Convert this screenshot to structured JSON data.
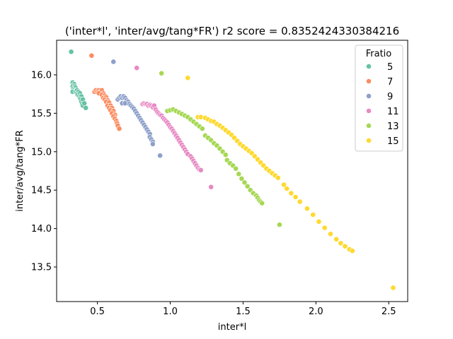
{
  "chart_data": {
    "type": "scatter",
    "title": "('inter*l', 'inter/avg/tang*FR') r2 score = 0.8352424330384216",
    "xlabel": "inter*l",
    "ylabel": "inter/avg/tang*FR",
    "xlim": [
      0.22,
      2.63
    ],
    "ylim": [
      13.05,
      16.45
    ],
    "xticks": [
      0.5,
      1.0,
      1.5,
      2.0,
      2.5
    ],
    "xtick_labels": [
      "0.5",
      "1.0",
      "1.5",
      "2.0",
      "2.5"
    ],
    "yticks": [
      13.5,
      14.0,
      14.5,
      15.0,
      15.5,
      16.0
    ],
    "ytick_labels": [
      "13.5",
      "14.0",
      "14.5",
      "15.0",
      "15.5",
      "16.0"
    ],
    "grid": false,
    "legend": {
      "title": "Fratio",
      "placement": "top-right"
    },
    "series": [
      {
        "name": "5",
        "color": "#66c2a5",
        "points": [
          [
            0.32,
            16.3
          ],
          [
            0.33,
            15.9
          ],
          [
            0.34,
            15.88
          ],
          [
            0.33,
            15.85
          ],
          [
            0.345,
            15.85
          ],
          [
            0.335,
            15.82
          ],
          [
            0.35,
            15.83
          ],
          [
            0.34,
            15.8
          ],
          [
            0.355,
            15.8
          ],
          [
            0.33,
            15.78
          ],
          [
            0.35,
            15.78
          ],
          [
            0.36,
            15.8
          ],
          [
            0.36,
            15.76
          ],
          [
            0.37,
            15.78
          ],
          [
            0.365,
            15.74
          ],
          [
            0.38,
            15.76
          ],
          [
            0.375,
            15.72
          ],
          [
            0.38,
            15.7
          ],
          [
            0.39,
            15.72
          ],
          [
            0.385,
            15.68
          ],
          [
            0.39,
            15.65
          ],
          [
            0.4,
            15.68
          ],
          [
            0.395,
            15.62
          ],
          [
            0.4,
            15.6
          ],
          [
            0.41,
            15.63
          ],
          [
            0.42,
            15.57
          ]
        ]
      },
      {
        "name": "7",
        "color": "#fc8d62",
        "points": [
          [
            0.46,
            16.25
          ],
          [
            0.48,
            15.78
          ],
          [
            0.49,
            15.8
          ],
          [
            0.5,
            15.78
          ],
          [
            0.51,
            15.8
          ],
          [
            0.52,
            15.78
          ],
          [
            0.53,
            15.8
          ],
          [
            0.51,
            15.76
          ],
          [
            0.54,
            15.76
          ],
          [
            0.53,
            15.74
          ],
          [
            0.55,
            15.73
          ],
          [
            0.54,
            15.7
          ],
          [
            0.56,
            15.71
          ],
          [
            0.55,
            15.68
          ],
          [
            0.57,
            15.67
          ],
          [
            0.56,
            15.65
          ],
          [
            0.58,
            15.64
          ],
          [
            0.57,
            15.6
          ],
          [
            0.59,
            15.6
          ],
          [
            0.58,
            15.57
          ],
          [
            0.6,
            15.57
          ],
          [
            0.59,
            15.54
          ],
          [
            0.61,
            15.53
          ],
          [
            0.6,
            15.5
          ],
          [
            0.62,
            15.48
          ],
          [
            0.61,
            15.46
          ],
          [
            0.62,
            15.43
          ],
          [
            0.63,
            15.4
          ],
          [
            0.635,
            15.37
          ],
          [
            0.64,
            15.34
          ],
          [
            0.65,
            15.3
          ]
        ]
      },
      {
        "name": "9",
        "color": "#8da0cb",
        "points": [
          [
            0.61,
            16.17
          ],
          [
            0.64,
            15.68
          ],
          [
            0.65,
            15.7
          ],
          [
            0.66,
            15.72
          ],
          [
            0.67,
            15.7
          ],
          [
            0.68,
            15.72
          ],
          [
            0.69,
            15.7
          ],
          [
            0.7,
            15.67
          ],
          [
            0.71,
            15.65
          ],
          [
            0.67,
            15.63
          ],
          [
            0.69,
            15.63
          ],
          [
            0.72,
            15.62
          ],
          [
            0.73,
            15.6
          ],
          [
            0.74,
            15.58
          ],
          [
            0.75,
            15.56
          ],
          [
            0.76,
            15.53
          ],
          [
            0.77,
            15.5
          ],
          [
            0.78,
            15.47
          ],
          [
            0.79,
            15.44
          ],
          [
            0.8,
            15.41
          ],
          [
            0.81,
            15.38
          ],
          [
            0.82,
            15.35
          ],
          [
            0.83,
            15.32
          ],
          [
            0.84,
            15.29
          ],
          [
            0.85,
            15.26
          ],
          [
            0.86,
            15.23
          ],
          [
            0.86,
            15.19
          ],
          [
            0.87,
            15.16
          ],
          [
            0.88,
            15.13
          ],
          [
            0.88,
            15.1
          ],
          [
            0.93,
            14.95
          ]
        ]
      },
      {
        "name": "11",
        "color": "#e78ac3",
        "points": [
          [
            0.77,
            16.09
          ],
          [
            0.81,
            15.62
          ],
          [
            0.82,
            15.63
          ],
          [
            0.83,
            15.62
          ],
          [
            0.84,
            15.62
          ],
          [
            0.85,
            15.6
          ],
          [
            0.86,
            15.61
          ],
          [
            0.87,
            15.6
          ],
          [
            0.88,
            15.58
          ],
          [
            0.89,
            15.6
          ],
          [
            0.9,
            15.55
          ],
          [
            0.91,
            15.52
          ],
          [
            0.92,
            15.5
          ],
          [
            0.93,
            15.48
          ],
          [
            0.94,
            15.47
          ],
          [
            0.95,
            15.44
          ],
          [
            0.96,
            15.42
          ],
          [
            0.97,
            15.4
          ],
          [
            0.98,
            15.38
          ],
          [
            0.99,
            15.35
          ],
          [
            1.0,
            15.32
          ],
          [
            1.01,
            15.3
          ],
          [
            1.02,
            15.27
          ],
          [
            1.03,
            15.24
          ],
          [
            1.04,
            15.21
          ],
          [
            1.05,
            15.18
          ],
          [
            1.06,
            15.15
          ],
          [
            1.07,
            15.12
          ],
          [
            1.08,
            15.09
          ],
          [
            1.09,
            15.06
          ],
          [
            1.1,
            15.03
          ],
          [
            1.11,
            15.0
          ],
          [
            1.12,
            14.97
          ],
          [
            1.14,
            14.94
          ],
          [
            1.15,
            14.91
          ],
          [
            1.16,
            14.88
          ],
          [
            1.17,
            14.85
          ],
          [
            1.18,
            14.82
          ],
          [
            1.19,
            14.79
          ],
          [
            1.2,
            14.77
          ],
          [
            1.21,
            14.76
          ],
          [
            1.28,
            14.54
          ]
        ]
      },
      {
        "name": "13",
        "color": "#a6d854",
        "points": [
          [
            0.94,
            16.02
          ],
          [
            0.98,
            15.53
          ],
          [
            1.0,
            15.54
          ],
          [
            1.02,
            15.55
          ],
          [
            1.04,
            15.53
          ],
          [
            1.06,
            15.51
          ],
          [
            1.08,
            15.49
          ],
          [
            1.1,
            15.47
          ],
          [
            1.12,
            15.45
          ],
          [
            1.14,
            15.42
          ],
          [
            1.16,
            15.39
          ],
          [
            1.18,
            15.36
          ],
          [
            1.2,
            15.33
          ],
          [
            1.22,
            15.3
          ],
          [
            1.24,
            15.21
          ],
          [
            1.26,
            15.18
          ],
          [
            1.28,
            15.15
          ],
          [
            1.3,
            15.11
          ],
          [
            1.32,
            15.08
          ],
          [
            1.34,
            15.04
          ],
          [
            1.36,
            15.0
          ],
          [
            1.38,
            14.96
          ],
          [
            1.39,
            14.89
          ],
          [
            1.41,
            14.85
          ],
          [
            1.43,
            14.82
          ],
          [
            1.45,
            14.78
          ],
          [
            1.47,
            14.71
          ],
          [
            1.49,
            14.65
          ],
          [
            1.51,
            14.6
          ],
          [
            1.53,
            14.55
          ],
          [
            1.55,
            14.5
          ],
          [
            1.57,
            14.46
          ],
          [
            1.59,
            14.43
          ],
          [
            1.6,
            14.4
          ],
          [
            1.61,
            14.37
          ],
          [
            1.62,
            14.35
          ],
          [
            1.63,
            14.33
          ],
          [
            1.75,
            14.05
          ]
        ]
      },
      {
        "name": "15",
        "color": "#ffd92f",
        "points": [
          [
            1.12,
            15.96
          ],
          [
            1.19,
            15.45
          ],
          [
            1.21,
            15.45
          ],
          [
            1.24,
            15.44
          ],
          [
            1.26,
            15.42
          ],
          [
            1.28,
            15.4
          ],
          [
            1.3,
            15.39
          ],
          [
            1.32,
            15.36
          ],
          [
            1.34,
            15.34
          ],
          [
            1.36,
            15.31
          ],
          [
            1.38,
            15.28
          ],
          [
            1.4,
            15.25
          ],
          [
            1.42,
            15.22
          ],
          [
            1.44,
            15.18
          ],
          [
            1.46,
            15.14
          ],
          [
            1.48,
            15.1
          ],
          [
            1.5,
            15.07
          ],
          [
            1.52,
            15.04
          ],
          [
            1.54,
            15.01
          ],
          [
            1.56,
            14.98
          ],
          [
            1.58,
            14.94
          ],
          [
            1.6,
            14.9
          ],
          [
            1.62,
            14.86
          ],
          [
            1.64,
            14.82
          ],
          [
            1.66,
            14.78
          ],
          [
            1.68,
            14.75
          ],
          [
            1.7,
            14.72
          ],
          [
            1.72,
            14.69
          ],
          [
            1.74,
            14.66
          ],
          [
            1.78,
            14.57
          ],
          [
            1.8,
            14.52
          ],
          [
            1.83,
            14.46
          ],
          [
            1.86,
            14.41
          ],
          [
            1.89,
            14.35
          ],
          [
            1.94,
            14.26
          ],
          [
            1.98,
            14.18
          ],
          [
            2.02,
            14.09
          ],
          [
            2.06,
            14.01
          ],
          [
            2.1,
            13.93
          ],
          [
            2.14,
            13.86
          ],
          [
            2.17,
            13.81
          ],
          [
            2.2,
            13.77
          ],
          [
            2.23,
            13.73
          ],
          [
            2.25,
            13.71
          ],
          [
            2.53,
            13.23
          ]
        ]
      }
    ]
  }
}
